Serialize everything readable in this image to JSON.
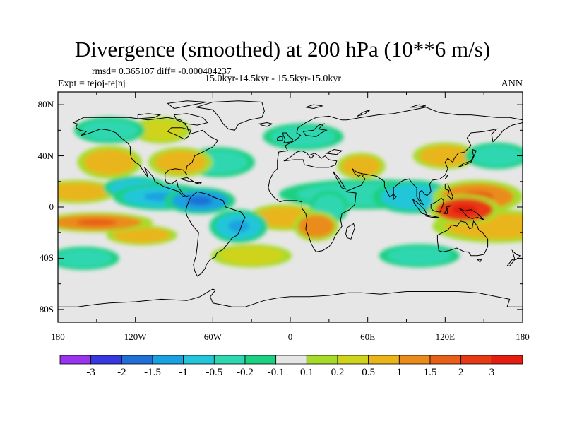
{
  "title": "Divergence (smoothed) at 200 hPa (10**6 m/s)",
  "stats": "rmsd= 0.365107  diff= -0.000404237",
  "experiment": "Expt = tejoj-tejnj",
  "period": "15.0kyr-14.5kyr - 15.5kyr-15.0kyr",
  "season": "ANN",
  "colors": {
    "background": "#ffffff",
    "land_outline": "#000000",
    "neutral": "#e6e6e6"
  },
  "map": {
    "lat_ticks": [
      "80N",
      "40N",
      "0",
      "40S",
      "80S"
    ],
    "lon_ticks": [
      "180",
      "120W",
      "60W",
      "0",
      "60E",
      "120E",
      "180"
    ]
  },
  "colorbar": {
    "labels": [
      "-3",
      "-2",
      "-1.5",
      "-1",
      "-0.5",
      "-0.2",
      "-0.1",
      "0.1",
      "0.2",
      "0.5",
      "1",
      "1.5",
      "2",
      "3"
    ],
    "colors": [
      "#9933ee",
      "#3838e0",
      "#1f6fd6",
      "#1aa2e0",
      "#23c6d9",
      "#2ed7b0",
      "#1bd081",
      "#e6e6e6",
      "#a6db2a",
      "#cfd31e",
      "#e9b51a",
      "#ea8c1b",
      "#e85f18",
      "#e63a15",
      "#e41d10"
    ]
  },
  "chart_data": {
    "type": "heatmap",
    "title": "Divergence (smoothed) at 200 hPa (10**6 m/s)",
    "x_range": [
      -180,
      180
    ],
    "y_range": [
      -90,
      90
    ],
    "x_ticks": [
      -180,
      -120,
      -60,
      0,
      60,
      120,
      180
    ],
    "y_ticks": [
      80,
      40,
      0,
      -40,
      -80
    ],
    "levels": [
      -3,
      -2,
      -1.5,
      -1,
      -0.5,
      -0.2,
      -0.1,
      0.1,
      0.2,
      0.5,
      1,
      1.5,
      2,
      3
    ],
    "features": [
      {
        "lon": 135,
        "lat": -2,
        "value": 2.5,
        "w": 22,
        "h": 9
      },
      {
        "lon": 145,
        "lat": 8,
        "value": 1.2,
        "w": 28,
        "h": 10
      },
      {
        "lon": 160,
        "lat": -15,
        "value": 0.6,
        "w": 40,
        "h": 10
      },
      {
        "lon": 60,
        "lat": 10,
        "value": -0.5,
        "w": 55,
        "h": 9
      },
      {
        "lon": 95,
        "lat": 8,
        "value": -0.9,
        "w": 25,
        "h": 10
      },
      {
        "lon": 20,
        "lat": -15,
        "value": 1.1,
        "w": 14,
        "h": 9
      },
      {
        "lon": -5,
        "lat": -8,
        "value": 0.8,
        "w": 22,
        "h": 8
      },
      {
        "lon": -40,
        "lat": -15,
        "value": -1.0,
        "w": 18,
        "h": 10
      },
      {
        "lon": -70,
        "lat": 5,
        "value": -1.4,
        "w": 22,
        "h": 8
      },
      {
        "lon": -100,
        "lat": 8,
        "value": -1.0,
        "w": 30,
        "h": 8
      },
      {
        "lon": -150,
        "lat": -12,
        "value": 1.4,
        "w": 35,
        "h": 6
      },
      {
        "lon": -115,
        "lat": -22,
        "value": 0.9,
        "w": 22,
        "h": 6
      },
      {
        "lon": -165,
        "lat": 12,
        "value": 0.6,
        "w": 25,
        "h": 7
      },
      {
        "lon": -140,
        "lat": 35,
        "value": 0.7,
        "w": 20,
        "h": 10
      },
      {
        "lon": -85,
        "lat": 35,
        "value": 0.8,
        "w": 20,
        "h": 9
      },
      {
        "lon": -55,
        "lat": 35,
        "value": -0.5,
        "w": 22,
        "h": 9
      },
      {
        "lon": -120,
        "lat": 15,
        "value": -0.6,
        "w": 20,
        "h": 7
      },
      {
        "lon": 10,
        "lat": 55,
        "value": -0.4,
        "w": 25,
        "h": 8
      },
      {
        "lon": 55,
        "lat": 32,
        "value": 0.6,
        "w": 15,
        "h": 8
      },
      {
        "lon": 120,
        "lat": 40,
        "value": 0.5,
        "w": 20,
        "h": 8
      },
      {
        "lon": 160,
        "lat": 40,
        "value": -0.5,
        "w": 20,
        "h": 8
      },
      {
        "lon": -30,
        "lat": -38,
        "value": 0.4,
        "w": 25,
        "h": 7
      },
      {
        "lon": 100,
        "lat": -38,
        "value": -0.4,
        "w": 25,
        "h": 7
      },
      {
        "lon": -160,
        "lat": -40,
        "value": -0.4,
        "w": 22,
        "h": 7
      },
      {
        "lon": -140,
        "lat": 60,
        "value": -0.4,
        "w": 22,
        "h": 8
      },
      {
        "lon": 30,
        "lat": 0,
        "value": -0.5,
        "w": 12,
        "h": 10
      },
      {
        "lon": -100,
        "lat": 60,
        "value": 0.3,
        "w": 18,
        "h": 8
      }
    ]
  }
}
